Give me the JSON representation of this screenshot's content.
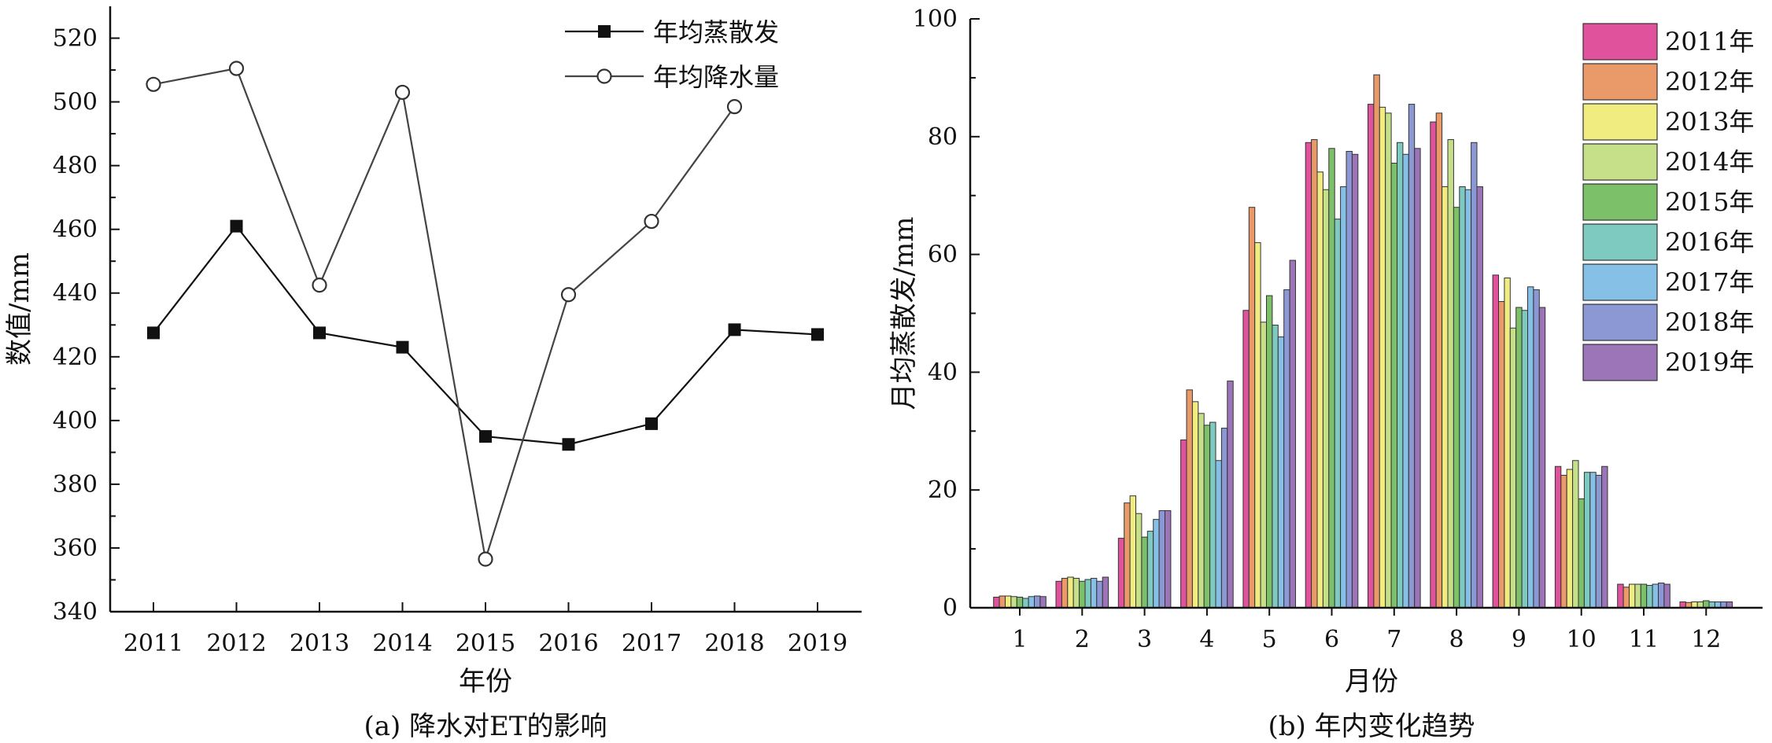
{
  "chart_data": [
    {
      "type": "line",
      "caption": "(a) 降水对ET的影响",
      "xlabel": "年份",
      "ylabel": "数值/mm",
      "categories": [
        "2011",
        "2012",
        "2013",
        "2014",
        "2015",
        "2016",
        "2017",
        "2018",
        "2019"
      ],
      "ylim": [
        340,
        530
      ],
      "yticks": [
        340,
        360,
        380,
        400,
        420,
        440,
        460,
        480,
        500,
        520
      ],
      "legend_position": "top-right",
      "grid": false,
      "series": [
        {
          "name": "年均蒸散发",
          "marker": "filled-square",
          "color": "#111111",
          "values": [
            427.5,
            461,
            427.5,
            423,
            395,
            392.5,
            399,
            428.5,
            427
          ]
        },
        {
          "name": "年均降水量",
          "marker": "open-circle",
          "color": "#444444",
          "values": [
            505.5,
            510.5,
            442.5,
            503,
            356.5,
            439.5,
            462.5,
            498.5,
            null
          ]
        }
      ]
    },
    {
      "type": "bar",
      "caption": "(b) 年内变化趋势",
      "xlabel": "月份",
      "ylabel": "月均蒸散发/mm",
      "categories": [
        "1",
        "2",
        "3",
        "4",
        "5",
        "6",
        "7",
        "8",
        "9",
        "10",
        "11",
        "12"
      ],
      "ylim": [
        0,
        100
      ],
      "yticks": [
        0,
        20,
        40,
        60,
        80,
        100
      ],
      "legend_position": "top-right",
      "grid": false,
      "series": [
        {
          "name": "2011年",
          "color": "#e0529c",
          "values": [
            1.8,
            4.5,
            11.8,
            28.5,
            50.5,
            79.0,
            85.5,
            82.5,
            56.5,
            24.0,
            4.0,
            1.0
          ]
        },
        {
          "name": "2012年",
          "color": "#ea9a68",
          "values": [
            2.0,
            5.0,
            17.8,
            37.0,
            68.0,
            79.5,
            90.5,
            84.0,
            52.0,
            22.5,
            3.5,
            0.9
          ]
        },
        {
          "name": "2013年",
          "color": "#f0ec80",
          "values": [
            2.0,
            5.2,
            19.0,
            35.0,
            62.0,
            74.0,
            85.0,
            71.5,
            56.0,
            23.5,
            4.0,
            1.0
          ]
        },
        {
          "name": "2014年",
          "color": "#c6e08a",
          "values": [
            1.9,
            5.0,
            16.0,
            33.0,
            48.5,
            71.0,
            84.0,
            79.5,
            47.5,
            25.0,
            4.0,
            1.0
          ]
        },
        {
          "name": "2015年",
          "color": "#7dc06a",
          "values": [
            1.8,
            4.5,
            12.0,
            31.0,
            53.0,
            78.0,
            75.5,
            68.0,
            51.0,
            18.5,
            4.0,
            1.2
          ]
        },
        {
          "name": "2016年",
          "color": "#7fcac0",
          "values": [
            1.6,
            4.8,
            13.0,
            31.5,
            48.0,
            66.0,
            79.0,
            71.5,
            50.5,
            23.0,
            3.8,
            1.0
          ]
        },
        {
          "name": "2017年",
          "color": "#86c0e6",
          "values": [
            1.9,
            5.0,
            15.0,
            25.0,
            46.0,
            71.5,
            77.0,
            71.0,
            54.5,
            23.0,
            4.0,
            1.0
          ]
        },
        {
          "name": "2018年",
          "color": "#8c98d4",
          "values": [
            2.0,
            4.5,
            16.5,
            30.5,
            54.0,
            77.5,
            85.5,
            79.0,
            54.0,
            22.5,
            4.2,
            1.0
          ]
        },
        {
          "name": "2019年",
          "color": "#9c74b8",
          "values": [
            1.9,
            5.2,
            16.5,
            38.5,
            59.0,
            77.0,
            78.0,
            71.5,
            51.0,
            24.0,
            4.0,
            1.0
          ]
        }
      ]
    }
  ]
}
